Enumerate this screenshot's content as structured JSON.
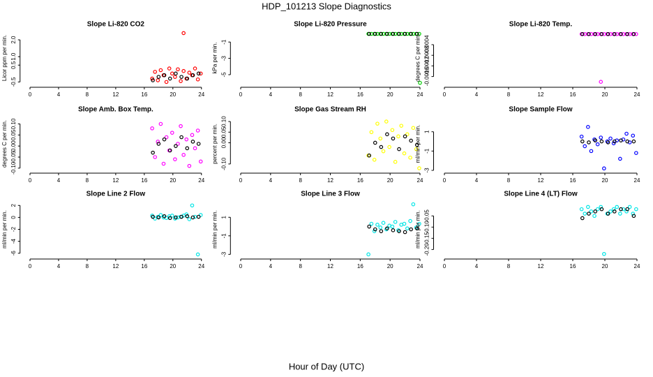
{
  "title": "HDP_101213  Slope Diagnostics",
  "xlabel": "Hour of Day (UTC)",
  "chart_data": [
    {
      "type": "scatter",
      "title": "Slope Li-820 CO2",
      "ylabel": "Licor ppm per min.",
      "xlim": [
        -1,
        25
      ],
      "xticks": [
        0,
        4,
        8,
        12,
        16,
        20,
        24
      ],
      "ylim": [
        -0.65,
        2.5
      ],
      "yticks": [
        -0.5,
        0.5,
        {
          "value": 1,
          "label": "1.0"
        },
        {
          "value": 2,
          "label": "2.0"
        }
      ],
      "series": [
        {
          "color": "#ff0000",
          "x": [
            17.1,
            17.5,
            17.9,
            18.3,
            18.7,
            19.1,
            19.5,
            19.9,
            20.3,
            20.7,
            21.1,
            21.5,
            21.9,
            22.3,
            22.7,
            23.1,
            23.5,
            23.9,
            21.5
          ],
          "values": [
            -0.3,
            0.1,
            -0.4,
            0.2,
            -0.1,
            -0.5,
            0.3,
            0.0,
            -0.2,
            0.25,
            -0.45,
            0.15,
            -0.3,
            0.05,
            -0.1,
            0.3,
            -0.35,
            0.0,
            2.4
          ]
        },
        {
          "color": "#000000",
          "x": [
            17.2,
            18,
            18.8,
            19.6,
            20.4,
            21.2,
            22,
            22.8,
            23.6
          ],
          "values": [
            -0.4,
            -0.2,
            -0.1,
            -0.3,
            0.0,
            -0.2,
            -0.3,
            -0.1,
            0.0
          ]
        }
      ]
    },
    {
      "type": "scatter",
      "title": "Slope Li-820 Pressure",
      "ylabel": "kPa per min.",
      "xlim": [
        -1,
        25
      ],
      "xticks": [
        0,
        4,
        8,
        12,
        16,
        20,
        24
      ],
      "ylim": [
        -6.2,
        0.3
      ],
      "yticks": [
        -5,
        -3,
        -1
      ],
      "series": [
        {
          "color": "#00cc00",
          "x": [
            17.1,
            17.5,
            17.9,
            18.3,
            18.7,
            19.1,
            19.5,
            19.9,
            20.3,
            20.7,
            21.1,
            21.5,
            21.9,
            22.3,
            22.7,
            23.1,
            23.5,
            23.9,
            24
          ],
          "values": [
            0,
            0,
            0,
            0,
            0,
            0,
            0,
            0,
            0,
            0,
            0,
            0,
            0,
            0,
            0,
            0,
            0,
            0,
            -6
          ]
        },
        {
          "color": "#000000",
          "x": [
            17.2,
            18,
            18.8,
            19.6,
            20.4,
            21.2,
            22,
            22.8,
            23.6
          ],
          "values": [
            0,
            0,
            0,
            0,
            0,
            0,
            0,
            0,
            0
          ]
        }
      ]
    },
    {
      "type": "scatter",
      "title": "Slope Li-820 Temp.",
      "ylabel": "degrees C per min.",
      "xlim": [
        -1,
        25
      ],
      "xticks": [
        0,
        4,
        8,
        12,
        16,
        20,
        24
      ],
      "ylim": [
        -0.0019,
        0.0001
      ],
      "yticks": [
        -0.0016,
        -0.0012,
        -0.0008,
        -0.0004
      ],
      "series": [
        {
          "color": "#ff00ff",
          "x": [
            17.1,
            17.5,
            17.9,
            18.3,
            18.7,
            19.1,
            19.5,
            19.9,
            20.3,
            20.7,
            21.1,
            21.5,
            21.9,
            22.3,
            22.7,
            23.1,
            23.5,
            23.9,
            19.5
          ],
          "values": [
            0,
            0,
            0,
            0,
            0,
            0,
            0,
            0,
            0,
            0,
            0,
            0,
            0,
            0,
            0,
            0,
            0,
            0,
            -0.0018
          ]
        },
        {
          "color": "#000000",
          "x": [
            17.2,
            18,
            18.8,
            19.6,
            20.4,
            21.2,
            22,
            22.8,
            23.6
          ],
          "values": [
            0,
            0,
            0,
            0,
            0,
            0,
            0,
            0,
            0
          ]
        }
      ]
    },
    {
      "type": "scatter",
      "title": "Slope Amb. Box Temp.",
      "ylabel": "degrees C per min.",
      "xlim": [
        -1,
        25
      ],
      "xticks": [
        0,
        4,
        8,
        12,
        16,
        20,
        24
      ],
      "ylim": [
        -0.11,
        0.13
      ],
      "yticks": [
        {
          "value": -0.1,
          "label": "-0.10"
        },
        -0.05,
        {
          "value": 0,
          "label": "0.00"
        },
        0.05,
        {
          "value": 0.1,
          "label": "0.10"
        }
      ],
      "series": [
        {
          "color": "#ff00ff",
          "x": [
            17.1,
            17.5,
            17.9,
            18.3,
            18.7,
            19.1,
            19.5,
            19.9,
            20.3,
            20.7,
            21.1,
            21.5,
            21.9,
            22.3,
            22.7,
            23.1,
            23.5,
            23.9
          ],
          "values": [
            0.08,
            -0.05,
            0.02,
            0.1,
            -0.08,
            0.04,
            -0.02,
            0.06,
            -0.06,
            0.01,
            0.09,
            -0.04,
            0.03,
            -0.09,
            0.05,
            -0.01,
            0.07,
            -0.07
          ]
        },
        {
          "color": "#000000",
          "x": [
            17.2,
            18,
            18.8,
            19.6,
            20.4,
            21.2,
            22,
            22.8,
            23.6
          ],
          "values": [
            -0.03,
            0.01,
            0.03,
            -0.02,
            0.0,
            0.04,
            -0.01,
            0.02,
            0.01
          ]
        }
      ]
    },
    {
      "type": "scatter",
      "title": "Slope Gas Stream RH",
      "ylabel": "percent per min.",
      "xlim": [
        -1,
        25
      ],
      "xticks": [
        0,
        4,
        8,
        12,
        16,
        20,
        24
      ],
      "ylim": [
        -0.13,
        0.12
      ],
      "yticks": [
        {
          "value": -0.1,
          "label": "-0.10"
        },
        {
          "value": 0,
          "label": "0.00"
        },
        0.05,
        {
          "value": 0.1,
          "label": "0.10"
        }
      ],
      "series": [
        {
          "color": "#ffff00",
          "x": [
            17.1,
            17.5,
            17.9,
            18.3,
            18.7,
            19.1,
            19.5,
            19.9,
            20.3,
            20.7,
            21.1,
            21.5,
            21.9,
            22.3,
            22.7,
            23.1,
            23.5,
            23.9
          ],
          "values": [
            -0.06,
            0.05,
            -0.08,
            0.09,
            0.02,
            -0.04,
            0.1,
            -0.02,
            0.06,
            -0.09,
            0.03,
            0.08,
            -0.05,
            0.04,
            -0.07,
            0.07,
            -0.03,
            -0.12
          ]
        },
        {
          "color": "#000000",
          "x": [
            17.2,
            18,
            18.8,
            19.6,
            20.4,
            21.2,
            22,
            22.8,
            23.6
          ],
          "values": [
            -0.06,
            0.0,
            -0.02,
            0.04,
            0.02,
            -0.03,
            0.03,
            0.01,
            -0.01
          ]
        }
      ]
    },
    {
      "type": "scatter",
      "title": "Slope Sample Flow",
      "ylabel": "ml/min per min.",
      "xlim": [
        -1,
        25
      ],
      "xticks": [
        0,
        4,
        8,
        12,
        16,
        20,
        24
      ],
      "ylim": [
        -3,
        2.5
      ],
      "yticks": [
        -3,
        -1,
        1
      ],
      "series": [
        {
          "color": "#0000ff",
          "x": [
            17.1,
            17.5,
            17.9,
            18.3,
            18.7,
            19.1,
            19.5,
            19.9,
            20.3,
            20.7,
            21.1,
            21.5,
            21.9,
            22.3,
            22.7,
            23.1,
            23.5,
            23.9
          ],
          "values": [
            0.5,
            -0.5,
            1.5,
            -1,
            0.2,
            -0.3,
            0.4,
            -2.8,
            0,
            0.3,
            -0.2,
            0.1,
            -1.8,
            0.2,
            0.8,
            -0.1,
            0.6,
            -1.2
          ]
        },
        {
          "color": "#000000",
          "x": [
            17.2,
            18,
            18.8,
            19.6,
            20.4,
            21.2,
            22,
            22.8,
            23.6
          ],
          "values": [
            0,
            -0.1,
            0.1,
            0,
            -0.1,
            0,
            0.1,
            0,
            0
          ]
        }
      ]
    },
    {
      "type": "scatter",
      "title": "Slope Line 2 Flow",
      "ylabel": "ml/min per min.",
      "xlim": [
        -1,
        25
      ],
      "xticks": [
        0,
        4,
        8,
        12,
        16,
        20,
        24
      ],
      "ylim": [
        -6.5,
        2.5
      ],
      "yticks": [
        -6,
        -4,
        -2,
        0,
        2
      ],
      "series": [
        {
          "color": "#00e5e5",
          "x": [
            17.1,
            17.5,
            17.9,
            18.3,
            18.7,
            19.1,
            19.5,
            19.9,
            20.3,
            20.7,
            21.1,
            21.5,
            21.9,
            22.3,
            22.7,
            23.1,
            23.5,
            23.9
          ],
          "values": [
            0.3,
            -0.2,
            0.1,
            0.4,
            0,
            -0.1,
            0.2,
            0.3,
            -0.2,
            0,
            0.1,
            0.3,
            0.5,
            -0.3,
            2,
            0.1,
            -6.2,
            0.4
          ]
        },
        {
          "color": "#000000",
          "x": [
            17.2,
            18,
            18.8,
            19.6,
            20.4,
            21.2,
            22,
            22.8,
            23.6
          ],
          "values": [
            0.1,
            0,
            0.2,
            -0.1,
            0,
            0.1,
            0.2,
            0,
            0.1
          ]
        }
      ]
    },
    {
      "type": "scatter",
      "title": "Slope Line 3 Flow",
      "ylabel": "ml/min per min.",
      "xlim": [
        -1,
        25
      ],
      "xticks": [
        0,
        4,
        8,
        12,
        16,
        20,
        24
      ],
      "ylim": [
        -3.2,
        2.6
      ],
      "yticks": [
        -3,
        -1,
        1
      ],
      "series": [
        {
          "color": "#00e5e5",
          "x": [
            17.1,
            17.5,
            17.9,
            18.3,
            18.7,
            19.1,
            19.5,
            19.9,
            20.3,
            20.7,
            21.1,
            21.5,
            21.9,
            22.3,
            22.7,
            23.1,
            23.5,
            23.9
          ],
          "values": [
            -3.0,
            0.3,
            -0.5,
            0.2,
            -0.1,
            0.4,
            -0.3,
            0.1,
            0,
            0.5,
            -0.4,
            0.2,
            0.3,
            -0.2,
            0.6,
            2.4,
            -0.1,
            0.3
          ]
        },
        {
          "color": "#000000",
          "x": [
            17.2,
            18,
            18.8,
            19.6,
            20.4,
            21.2,
            22,
            22.8,
            23.6
          ],
          "values": [
            0,
            -0.3,
            -0.5,
            -0.2,
            -0.4,
            -0.5,
            -0.6,
            -0.3,
            -0.2
          ]
        }
      ]
    },
    {
      "type": "scatter",
      "title": "Slope Line 4 (LT) Flow",
      "ylabel": "ml/min per min.",
      "xlim": [
        -1,
        25
      ],
      "xticks": [
        0,
        4,
        8,
        12,
        16,
        20,
        24
      ],
      "ylim": [
        -0.23,
        0.01
      ],
      "yticks": [
        {
          "value": -0.2,
          "label": "-0.20"
        },
        -0.15,
        {
          "value": -0.1,
          "label": "-0.10"
        },
        -0.05
      ],
      "series": [
        {
          "color": "#00e5e5",
          "x": [
            17.1,
            17.5,
            17.9,
            18.3,
            18.7,
            19.1,
            19.5,
            19.9,
            20.3,
            20.7,
            21.1,
            21.5,
            21.9,
            22.3,
            22.7,
            23.1,
            23.5,
            23.9
          ],
          "values": [
            -0.02,
            -0.04,
            -0.01,
            -0.03,
            -0.05,
            -0.02,
            -0.01,
            -0.22,
            -0.04,
            -0.03,
            -0.02,
            -0.01,
            -0.04,
            -0.02,
            -0.03,
            -0.01,
            -0.04,
            -0.02
          ]
        },
        {
          "color": "#000000",
          "x": [
            17.2,
            18,
            18.8,
            19.6,
            20.4,
            21.2,
            22,
            22.8,
            23.6
          ],
          "values": [
            -0.06,
            -0.04,
            -0.03,
            -0.02,
            -0.04,
            -0.03,
            -0.02,
            -0.02,
            -0.05
          ]
        }
      ]
    }
  ]
}
